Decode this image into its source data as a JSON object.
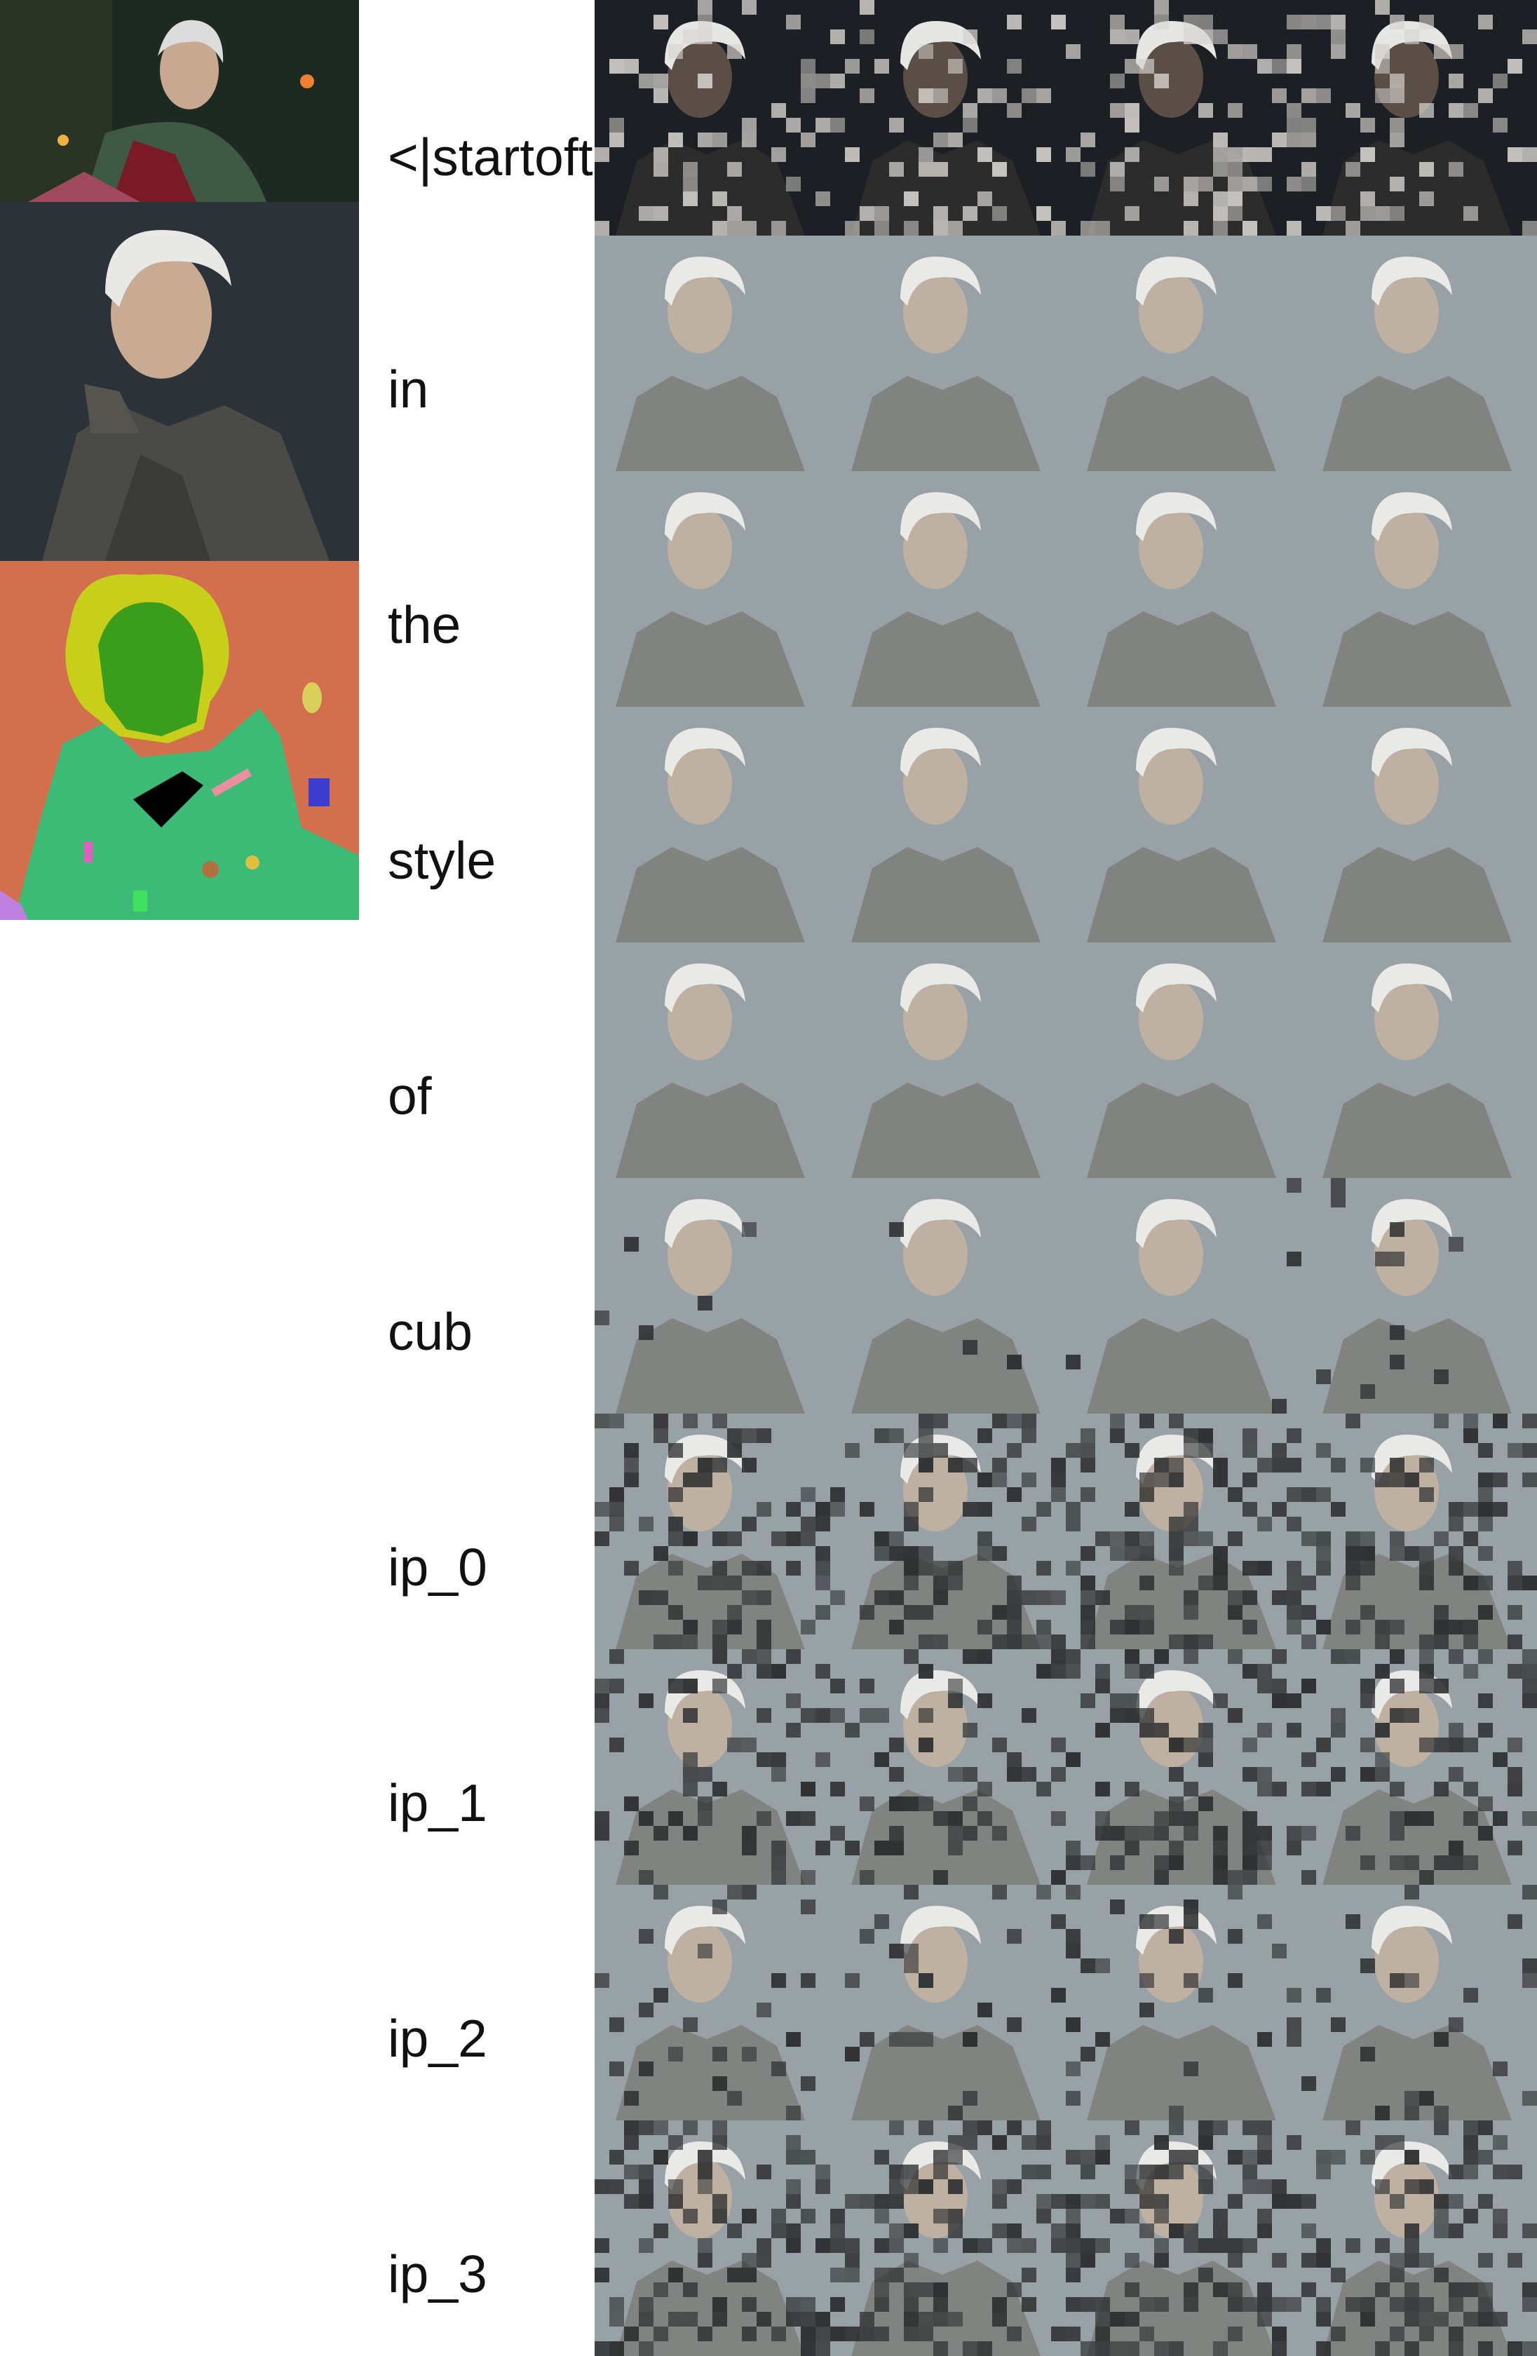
{
  "reference_images": [
    {
      "name": "scene-reference",
      "description_icon": "white-haired-man-night-scene"
    },
    {
      "name": "portrait-reference",
      "description_icon": "white-haired-man-portrait"
    },
    {
      "name": "segmentation-reference",
      "description_icon": "segmentation-map"
    }
  ],
  "tokens": [
    "<|startoftext|>",
    "in",
    "the",
    "style",
    "of",
    "cub",
    "ip_0",
    "ip_1",
    "ip_2",
    "ip_3"
  ],
  "columns": 4,
  "colors": {
    "background": "#ffffff",
    "label_text": "#111111",
    "portrait_bg": "#8a9599",
    "dark_bg": "#1c2024",
    "seg_bg": "#d2704d",
    "seg_green": "#3dba76",
    "seg_yellow": "#c8cf1a",
    "seg_face": "#3a9e1c"
  }
}
